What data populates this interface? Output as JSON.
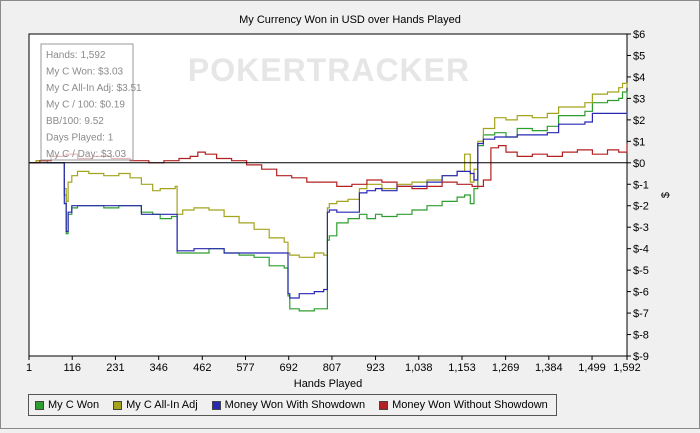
{
  "colors": {
    "my_c_won": "#2e9e2e",
    "all_in_adj": "#a3a31c",
    "with_showdown": "#2828b4",
    "without_showdown": "#b42020",
    "plot_bg": "#ffffff",
    "zero_line": "#000000"
  },
  "watermark": "POKERTRACKER",
  "stats": [
    {
      "label": "Hands: 1,592"
    },
    {
      "label": "My C Won: $3.03"
    },
    {
      "label": "My C All-In Adj: $3.51"
    },
    {
      "label": "My C / 100: $0.19"
    },
    {
      "label": "BB/100: 9.52"
    },
    {
      "label": "Days Played: 1"
    },
    {
      "label": "My C / Day: $3.03"
    }
  ],
  "legend": [
    {
      "label": "My C Won"
    },
    {
      "label": "My C All-In Adj"
    },
    {
      "label": "Money Won With Showdown"
    },
    {
      "label": "Money Won Without Showdown"
    }
  ],
  "chart_data": {
    "type": "line",
    "title": "My Currency Won in USD over Hands Played",
    "xlabel": "Hands Played",
    "ylabel": "$",
    "xlim": [
      1,
      1592
    ],
    "ylim": [
      -9,
      6
    ],
    "x_ticks": [
      1,
      116,
      231,
      346,
      462,
      577,
      692,
      807,
      923,
      1038,
      1153,
      1269,
      1384,
      1499,
      1592
    ],
    "x_tick_labels": [
      "1",
      "116",
      "231",
      "346",
      "462",
      "577",
      "692",
      "807",
      "923",
      "1,038",
      "1,153",
      "1,269",
      "1,384",
      "1,499",
      "1,592"
    ],
    "y_ticks": [
      6,
      5,
      4,
      3,
      2,
      1,
      0,
      -1,
      -2,
      -3,
      -4,
      -5,
      -6,
      -7,
      -8,
      -9
    ],
    "y_tick_labels": [
      "$6",
      "$5",
      "$4",
      "$3",
      "$2",
      "$1",
      "$0",
      "$-1",
      "$-2",
      "$-3",
      "$-4",
      "$-5",
      "$-6",
      "$-7",
      "$-8",
      "$-9"
    ],
    "y_axis_side": "right",
    "grid": false,
    "legend_position": "bottom",
    "series": [
      {
        "name": "My C Won",
        "x": [
          1,
          20,
          50,
          80,
          95,
          100,
          105,
          115,
          130,
          160,
          200,
          240,
          270,
          300,
          330,
          350,
          380,
          390,
          395,
          410,
          440,
          480,
          520,
          560,
          600,
          640,
          680,
          690,
          695,
          720,
          760,
          785,
          795,
          800,
          820,
          850,
          880,
          900,
          923,
          940,
          980,
          1020,
          1060,
          1100,
          1140,
          1160,
          1175,
          1185,
          1195,
          1210,
          1240,
          1270,
          1300,
          1340,
          1380,
          1410,
          1450,
          1480,
          1500,
          1540,
          1570,
          1580,
          1592
        ],
        "y": [
          0,
          0.1,
          0,
          0,
          -1.5,
          -3.3,
          -2.4,
          -2.1,
          -2.0,
          -2.0,
          -2.1,
          -2.0,
          -2.0,
          -2.3,
          -2.4,
          -2.6,
          -2.5,
          -2.5,
          -4.2,
          -4.2,
          -4.2,
          -4.0,
          -4.2,
          -4.3,
          -4.4,
          -4.8,
          -4.9,
          -6.2,
          -6.8,
          -6.9,
          -6.8,
          -6.8,
          -3.6,
          -3.4,
          -2.8,
          -2.6,
          -2.4,
          -2.6,
          -2.4,
          -2.5,
          -2.4,
          -2.2,
          -2.0,
          -1.8,
          -1.6,
          -1.5,
          -1.9,
          -1.2,
          0.8,
          1.3,
          1.4,
          1.2,
          1.6,
          1.5,
          1.7,
          2.2,
          2.2,
          2.4,
          2.8,
          2.9,
          3.0,
          3.3,
          3.0
        ]
      },
      {
        "name": "My C All-In Adj",
        "x": [
          1,
          20,
          50,
          80,
          95,
          100,
          105,
          115,
          130,
          160,
          200,
          240,
          270,
          300,
          330,
          350,
          380,
          390,
          395,
          410,
          440,
          480,
          520,
          560,
          600,
          640,
          680,
          690,
          695,
          720,
          760,
          785,
          795,
          800,
          820,
          850,
          880,
          900,
          923,
          940,
          980,
          1020,
          1060,
          1100,
          1140,
          1160,
          1175,
          1185,
          1195,
          1210,
          1240,
          1270,
          1300,
          1340,
          1380,
          1410,
          1450,
          1480,
          1500,
          1540,
          1570,
          1580,
          1592
        ],
        "y": [
          0,
          0.1,
          0,
          0,
          -1.2,
          -1.8,
          -0.9,
          -0.6,
          -0.4,
          -0.5,
          -0.6,
          -0.5,
          -0.7,
          -1.0,
          -1.3,
          -1.2,
          -1.2,
          -1.1,
          -2.4,
          -2.2,
          -2.1,
          -2.2,
          -2.5,
          -2.8,
          -3.1,
          -3.5,
          -3.7,
          -4.2,
          -4.3,
          -4.4,
          -4.2,
          -4.3,
          -2.1,
          -1.9,
          -1.8,
          -1.7,
          -1.2,
          -1.0,
          -1.0,
          -1.2,
          -1.0,
          -0.9,
          -0.8,
          -0.6,
          -0.4,
          0.4,
          -0.9,
          -0.3,
          1.0,
          1.6,
          2.1,
          2.0,
          2.2,
          2.1,
          2.3,
          2.6,
          2.6,
          2.8,
          3.2,
          3.3,
          3.5,
          3.7,
          3.5
        ]
      },
      {
        "name": "Money Won With Showdown",
        "x": [
          1,
          20,
          50,
          80,
          95,
          100,
          105,
          115,
          130,
          160,
          200,
          240,
          270,
          300,
          330,
          350,
          380,
          390,
          395,
          410,
          440,
          480,
          520,
          560,
          600,
          640,
          680,
          690,
          695,
          720,
          760,
          785,
          795,
          800,
          820,
          850,
          880,
          900,
          923,
          940,
          980,
          1020,
          1060,
          1100,
          1140,
          1160,
          1175,
          1185,
          1195,
          1210,
          1240,
          1270,
          1300,
          1340,
          1380,
          1410,
          1450,
          1480,
          1500,
          1540,
          1570,
          1580,
          1592
        ],
        "y": [
          0,
          0,
          0,
          0,
          -1.9,
          -3.2,
          -2.3,
          -2.0,
          -2.0,
          -2.0,
          -2.0,
          -2.0,
          -2.0,
          -2.4,
          -2.4,
          -2.4,
          -2.4,
          -2.4,
          -4.1,
          -4.1,
          -4.0,
          -4.0,
          -4.2,
          -4.2,
          -4.2,
          -4.2,
          -4.2,
          -6.1,
          -6.3,
          -6.1,
          -6.0,
          -5.9,
          -2.3,
          -2.2,
          -2.3,
          -2.3,
          -1.4,
          -1.3,
          -1.2,
          -1.3,
          -1.1,
          -1.1,
          -0.9,
          -0.6,
          -0.4,
          -0.4,
          -0.5,
          -0.8,
          0.9,
          1.1,
          1.2,
          1.2,
          1.3,
          1.3,
          1.4,
          1.8,
          1.8,
          1.9,
          2.3,
          2.3,
          2.3,
          2.3,
          2.2
        ]
      },
      {
        "name": "Money Won Without Showdown",
        "x": [
          1,
          30,
          60,
          100,
          130,
          170,
          220,
          270,
          320,
          360,
          400,
          430,
          450,
          470,
          500,
          540,
          580,
          620,
          660,
          700,
          740,
          780,
          820,
          860,
          900,
          940,
          980,
          1020,
          1060,
          1100,
          1140,
          1180,
          1210,
          1230,
          1250,
          1270,
          1300,
          1340,
          1380,
          1420,
          1460,
          1500,
          1540,
          1570,
          1592
        ],
        "y": [
          0,
          0.1,
          0.3,
          0.4,
          0.2,
          0.3,
          0.2,
          0.1,
          0.0,
          0.1,
          0.2,
          0.3,
          0.5,
          0.4,
          0.2,
          0.1,
          -0.1,
          -0.3,
          -0.6,
          -0.7,
          -0.9,
          -0.9,
          -1.1,
          -1.0,
          -0.8,
          -0.9,
          -1.1,
          -1.2,
          -1.1,
          -0.9,
          -1.0,
          -1.1,
          -0.8,
          0.7,
          0.8,
          0.5,
          0.3,
          0.4,
          0.3,
          0.5,
          0.6,
          0.4,
          0.6,
          0.5,
          0.9
        ]
      }
    ]
  }
}
